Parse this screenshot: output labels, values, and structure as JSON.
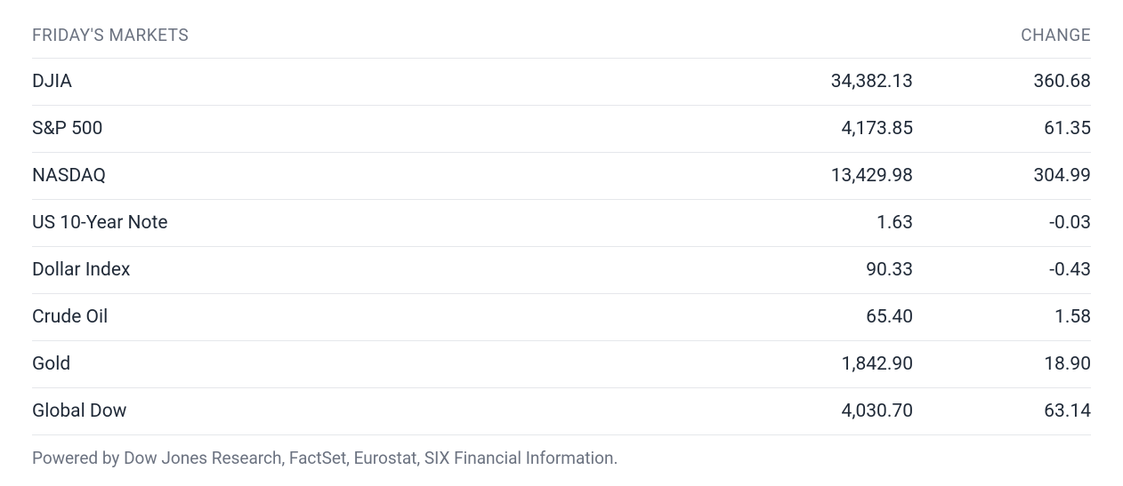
{
  "table": {
    "type": "table",
    "title": "FRIDAY'S MARKETS",
    "change_header": "CHANGE",
    "columns": [
      "name",
      "value",
      "change"
    ],
    "column_alignment": [
      "left",
      "right",
      "right"
    ],
    "header_color": "#6b7280",
    "header_fontsize": 19,
    "header_fontweight": 400,
    "row_fontsize": 21,
    "row_color": "#1f2937",
    "border_color": "#e5e7eb",
    "background_color": "#ffffff",
    "rows": [
      {
        "name": "DJIA",
        "value": "34,382.13",
        "change": "360.68"
      },
      {
        "name": "S&P 500",
        "value": "4,173.85",
        "change": "61.35"
      },
      {
        "name": "NASDAQ",
        "value": "13,429.98",
        "change": "304.99"
      },
      {
        "name": "US 10-Year Note",
        "value": "1.63",
        "change": "-0.03"
      },
      {
        "name": "Dollar Index",
        "value": "90.33",
        "change": "-0.43"
      },
      {
        "name": "Crude Oil",
        "value": "65.40",
        "change": "1.58"
      },
      {
        "name": "Gold",
        "value": "1,842.90",
        "change": "18.90"
      },
      {
        "name": "Global Dow",
        "value": "4,030.70",
        "change": "63.14"
      }
    ]
  },
  "footer": {
    "text": "Powered by Dow Jones Research, FactSet, Eurostat, SIX Financial Information."
  }
}
